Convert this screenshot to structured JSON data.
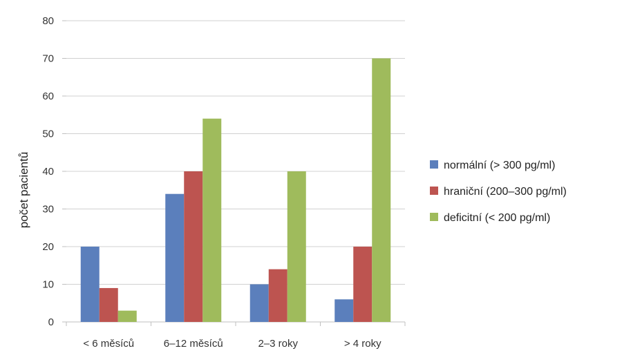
{
  "chart_data": {
    "type": "bar",
    "title": "",
    "xlabel": "",
    "ylabel": "počet pacientů",
    "categories": [
      "< 6 měsíců",
      "6–12 měsíců",
      "2–3 roky",
      "> 4 roky"
    ],
    "series": [
      {
        "name": "normální (> 300 pg/ml)",
        "color": "#5b7fbc",
        "values": [
          20,
          34,
          10,
          6
        ]
      },
      {
        "name": "hraniční (200–300 pg/ml)",
        "color": "#bd5450",
        "values": [
          9,
          40,
          14,
          20
        ]
      },
      {
        "name": "deficitní (< 200 pg/ml)",
        "color": "#9fbb5c",
        "values": [
          3,
          54,
          40,
          70
        ]
      }
    ],
    "ylim": [
      0,
      80
    ],
    "yticks": [
      0,
      10,
      20,
      30,
      40,
      50,
      60,
      70,
      80
    ],
    "grid": true,
    "legend": "right"
  }
}
